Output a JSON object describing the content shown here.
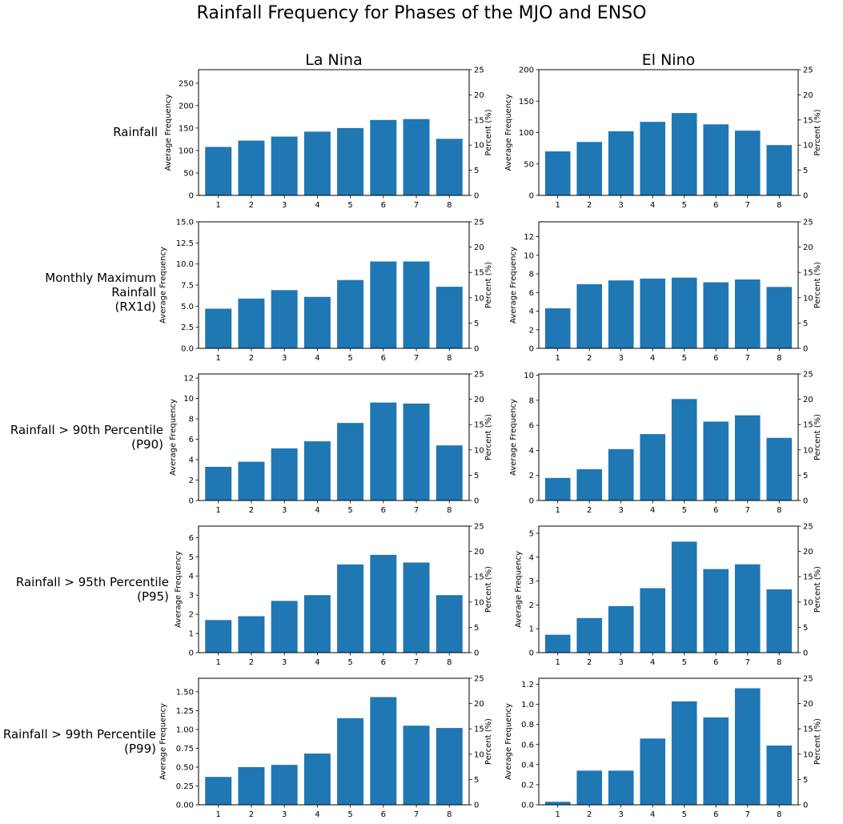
{
  "suptitle": "Rainfall Frequency for Phases of the MJO and ENSO",
  "columns": [
    "La Nina",
    "El Nino"
  ],
  "rows": [
    {
      "line1": "Rainfall",
      "line2": ""
    },
    {
      "line1": "Monthly Maximum Rainfall",
      "line2": "(RX1d)"
    },
    {
      "line1": "Rainfall > 90th Percentile",
      "line2": "(P90)"
    },
    {
      "line1": "Rainfall > 95th Percentile",
      "line2": "(P95)"
    },
    {
      "line1": "Rainfall > 99th Percentile",
      "line2": "(P99)"
    }
  ],
  "chart_data": [
    {
      "type": "bar",
      "row": 0,
      "col": 0,
      "categories": [
        "1",
        "2",
        "3",
        "4",
        "5",
        "6",
        "7",
        "8"
      ],
      "values": [
        108,
        122,
        131,
        142,
        150,
        168,
        170,
        126
      ],
      "ylabel": "Average Frequency",
      "y2label": "Percent (%)",
      "ylim": [
        0,
        280
      ],
      "yticks": [
        "0",
        "50",
        "100",
        "150",
        "200",
        "250"
      ],
      "y2lim": [
        0,
        25
      ],
      "y2ticks": [
        "0",
        "5",
        "10",
        "15",
        "20",
        "25"
      ]
    },
    {
      "type": "bar",
      "row": 0,
      "col": 1,
      "categories": [
        "1",
        "2",
        "3",
        "4",
        "5",
        "6",
        "7",
        "8"
      ],
      "values": [
        70,
        85,
        102,
        117,
        131,
        113,
        103,
        80
      ],
      "ylabel": "Average Frequency",
      "y2label": "Percent (%)",
      "ylim": [
        0,
        200
      ],
      "yticks": [
        "0",
        "50",
        "100",
        "150",
        "200"
      ],
      "y2lim": [
        0,
        25
      ],
      "y2ticks": [
        "0",
        "5",
        "10",
        "15",
        "20",
        "25"
      ]
    },
    {
      "type": "bar",
      "row": 1,
      "col": 0,
      "categories": [
        "1",
        "2",
        "3",
        "4",
        "5",
        "6",
        "7",
        "8"
      ],
      "values": [
        4.7,
        5.9,
        6.9,
        6.1,
        8.1,
        10.3,
        10.3,
        7.3
      ],
      "ylabel": "Average Frequency",
      "y2label": "Percent (%)",
      "ylim": [
        0,
        15
      ],
      "yticks": [
        "0.0",
        "2.5",
        "5.0",
        "7.5",
        "10.0",
        "12.5",
        "15.0"
      ],
      "y2lim": [
        0,
        25
      ],
      "y2ticks": [
        "0",
        "5",
        "10",
        "15",
        "20",
        "25"
      ]
    },
    {
      "type": "bar",
      "row": 1,
      "col": 1,
      "categories": [
        "1",
        "2",
        "3",
        "4",
        "5",
        "6",
        "7",
        "8"
      ],
      "values": [
        4.3,
        6.9,
        7.3,
        7.5,
        7.6,
        7.1,
        7.4,
        6.6
      ],
      "ylabel": "Average Frequency",
      "y2label": "Percent (%)",
      "ylim": [
        0,
        13.6
      ],
      "yticks": [
        "0",
        "2",
        "4",
        "6",
        "8",
        "10",
        "12"
      ],
      "y2lim": [
        0,
        25
      ],
      "y2ticks": [
        "0",
        "5",
        "10",
        "15",
        "20",
        "25"
      ]
    },
    {
      "type": "bar",
      "row": 2,
      "col": 0,
      "categories": [
        "1",
        "2",
        "3",
        "4",
        "5",
        "6",
        "7",
        "8"
      ],
      "values": [
        3.3,
        3.8,
        5.1,
        5.8,
        7.6,
        9.6,
        9.5,
        5.4
      ],
      "ylabel": "Average Frequency",
      "y2label": "Percent (%)",
      "ylim": [
        0,
        12.4
      ],
      "yticks": [
        "0",
        "2",
        "4",
        "6",
        "8",
        "10",
        "12"
      ],
      "y2lim": [
        0,
        25
      ],
      "y2ticks": [
        "0",
        "5",
        "10",
        "15",
        "20",
        "25"
      ]
    },
    {
      "type": "bar",
      "row": 2,
      "col": 1,
      "categories": [
        "1",
        "2",
        "3",
        "4",
        "5",
        "6",
        "7",
        "8"
      ],
      "values": [
        1.8,
        2.5,
        4.1,
        5.3,
        8.1,
        6.3,
        6.8,
        5.0
      ],
      "ylabel": "Average Frequency",
      "y2label": "Percent (%)",
      "ylim": [
        0,
        10.1
      ],
      "yticks": [
        "0",
        "2",
        "4",
        "6",
        "8",
        "10"
      ],
      "y2lim": [
        0,
        25
      ],
      "y2ticks": [
        "0",
        "5",
        "10",
        "15",
        "20",
        "25"
      ]
    },
    {
      "type": "bar",
      "row": 3,
      "col": 0,
      "categories": [
        "1",
        "2",
        "3",
        "4",
        "5",
        "6",
        "7",
        "8"
      ],
      "values": [
        1.7,
        1.9,
        2.7,
        3.0,
        4.6,
        5.1,
        4.7,
        3.0
      ],
      "ylabel": "Average Frequency",
      "y2label": "Percent (%)",
      "ylim": [
        0,
        6.6
      ],
      "yticks": [
        "0",
        "1",
        "2",
        "3",
        "4",
        "5",
        "6"
      ],
      "y2lim": [
        0,
        25
      ],
      "y2ticks": [
        "0",
        "5",
        "10",
        "15",
        "20",
        "25"
      ]
    },
    {
      "type": "bar",
      "row": 3,
      "col": 1,
      "categories": [
        "1",
        "2",
        "3",
        "4",
        "5",
        "6",
        "7",
        "8"
      ],
      "values": [
        0.75,
        1.45,
        1.95,
        2.7,
        4.65,
        3.5,
        3.7,
        2.65
      ],
      "ylabel": "Average Frequency",
      "y2label": "Percent (%)",
      "ylim": [
        0,
        5.3
      ],
      "yticks": [
        "0",
        "1",
        "2",
        "3",
        "4",
        "5"
      ],
      "y2lim": [
        0,
        25
      ],
      "y2ticks": [
        "0",
        "5",
        "10",
        "15",
        "20",
        "25"
      ]
    },
    {
      "type": "bar",
      "row": 4,
      "col": 0,
      "categories": [
        "1",
        "2",
        "3",
        "4",
        "5",
        "6",
        "7",
        "8"
      ],
      "values": [
        0.37,
        0.5,
        0.53,
        0.68,
        1.15,
        1.43,
        1.05,
        1.02
      ],
      "ylabel": "Average Frequency",
      "y2label": "Percent (%)",
      "ylim": [
        0,
        1.68
      ],
      "yticks": [
        "0.00",
        "0.25",
        "0.50",
        "0.75",
        "1.00",
        "1.25",
        "1.50"
      ],
      "y2lim": [
        0,
        25
      ],
      "y2ticks": [
        "0",
        "5",
        "10",
        "15",
        "20",
        "25"
      ]
    },
    {
      "type": "bar",
      "row": 4,
      "col": 1,
      "categories": [
        "1",
        "2",
        "3",
        "4",
        "5",
        "6",
        "7",
        "8"
      ],
      "values": [
        0.03,
        0.34,
        0.34,
        0.66,
        1.03,
        0.87,
        1.16,
        0.59
      ],
      "ylabel": "Average Frequency",
      "y2label": "Percent (%)",
      "ylim": [
        0,
        1.26
      ],
      "yticks": [
        "0.0",
        "0.2",
        "0.4",
        "0.6",
        "0.8",
        "1.0",
        "1.2"
      ],
      "y2lim": [
        0,
        25
      ],
      "y2ticks": [
        "0",
        "5",
        "10",
        "15",
        "20",
        "25"
      ]
    }
  ],
  "colors": {
    "bar": "#1f77b4",
    "axis": "#000000",
    "text": "#000000"
  }
}
